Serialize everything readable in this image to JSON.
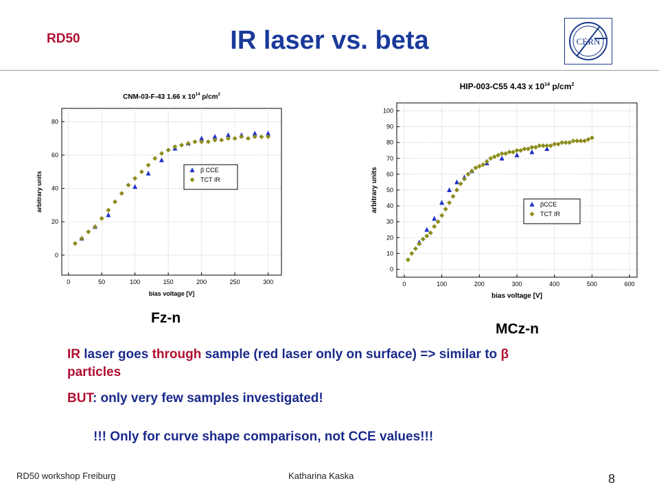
{
  "header": {
    "label": "RD50",
    "title": "IR laser vs. beta"
  },
  "logo": {
    "icon": "cern-logo-icon",
    "text": "CERN",
    "color": "#1a3a8a"
  },
  "charts": {
    "left": {
      "caption": "Fz-n"
    },
    "right": {
      "caption": "MCz-n"
    }
  },
  "chart_data": [
    {
      "type": "scatter",
      "title": "CNM-03-F-43 1.66 x 10",
      "title_sup": "14",
      "title_unit": "p/cm",
      "title_unit_sup": "2",
      "xlabel": "bias voltage [V]",
      "ylabel": "arbitrary units",
      "xlim": [
        -10,
        320
      ],
      "ylim": [
        -12,
        88
      ],
      "xticks": [
        0,
        50,
        100,
        150,
        200,
        250,
        300
      ],
      "yticks": [
        0,
        20,
        40,
        60,
        80
      ],
      "grid": true,
      "legend_position": "right",
      "series": [
        {
          "name": "β CCE",
          "marker": "triangle",
          "color": "#1f32c8",
          "x": [
            20,
            40,
            60,
            100,
            120,
            140,
            160,
            180,
            200,
            220,
            240,
            260,
            280,
            300
          ],
          "y": [
            10,
            17,
            24,
            41,
            49,
            57,
            64,
            67,
            70,
            71,
            72,
            72,
            73,
            73
          ]
        },
        {
          "name": "TCT IR",
          "marker": "diamond",
          "color": "#8c8c1c",
          "x": [
            10,
            20,
            30,
            40,
            50,
            60,
            70,
            80,
            90,
            100,
            110,
            120,
            130,
            140,
            150,
            160,
            170,
            180,
            190,
            200,
            210,
            220,
            230,
            240,
            250,
            260,
            270,
            280,
            290,
            300
          ],
          "y": [
            7,
            10,
            14,
            17,
            22,
            27,
            32,
            37,
            42,
            46,
            50,
            54,
            58,
            61,
            63,
            65,
            66,
            67,
            68,
            68,
            68,
            69,
            69,
            70,
            70,
            71,
            70,
            71,
            71,
            71
          ]
        }
      ]
    },
    {
      "type": "scatter",
      "title": "HIP-003-C55 4.43 x 10",
      "title_sup": "14",
      "title_unit": "p/cm",
      "title_unit_sup": "2",
      "xlabel": "bias voltage [V]",
      "ylabel": "arbitrary units",
      "xlim": [
        -20,
        620
      ],
      "ylim": [
        -5,
        105
      ],
      "xticks": [
        0,
        100,
        200,
        300,
        400,
        500,
        600
      ],
      "yticks": [
        0,
        10,
        20,
        30,
        40,
        50,
        60,
        70,
        80,
        90,
        100
      ],
      "grid": true,
      "legend_position": "right",
      "series": [
        {
          "name": "βCCE",
          "marker": "triangle",
          "color": "#1f32c8",
          "x": [
            40,
            60,
            80,
            100,
            120,
            140,
            160,
            180,
            220,
            260,
            300,
            340,
            380
          ],
          "y": [
            17,
            25,
            32,
            42,
            50,
            55,
            58,
            62,
            67,
            70,
            72,
            74,
            76
          ]
        },
        {
          "name": "TCT IR",
          "marker": "diamond",
          "color": "#8c8c1c",
          "x": [
            10,
            20,
            30,
            40,
            50,
            60,
            70,
            80,
            90,
            100,
            110,
            120,
            130,
            140,
            150,
            160,
            170,
            180,
            190,
            200,
            210,
            220,
            230,
            240,
            250,
            260,
            270,
            280,
            290,
            300,
            310,
            320,
            330,
            340,
            350,
            360,
            370,
            380,
            390,
            400,
            410,
            420,
            430,
            440,
            450,
            460,
            470,
            480,
            490,
            500
          ],
          "y": [
            6,
            10,
            13,
            16,
            19,
            21,
            23,
            27,
            30,
            34,
            38,
            42,
            46,
            50,
            54,
            57,
            60,
            62,
            64,
            65,
            66,
            68,
            70,
            71,
            72,
            73,
            73,
            74,
            74,
            75,
            75,
            76,
            76,
            77,
            77,
            78,
            78,
            78,
            78,
            79,
            79,
            80,
            80,
            80,
            81,
            81,
            81,
            81,
            82,
            83
          ]
        }
      ]
    }
  ],
  "body": {
    "para1": {
      "ir": "IR",
      "part1": " laser goes ",
      "through": "through",
      "part2": " sample (red laser only on surface) => similar to ",
      "beta": "β particles"
    },
    "para2": {
      "but": "BUT",
      "rest": ": only very few samples investigated!"
    },
    "para3": "!!! Only for curve shape comparison, not CCE values!!!"
  },
  "footer": {
    "left": "RD50 workshop Freiburg",
    "center": "Katharina Kaska",
    "page": "8"
  },
  "colors": {
    "accent": "#b01030",
    "title": "#1a3a9a",
    "text": "#1a2a8a",
    "triangle": "#1f32c8",
    "diamond": "#8c8c1c"
  }
}
